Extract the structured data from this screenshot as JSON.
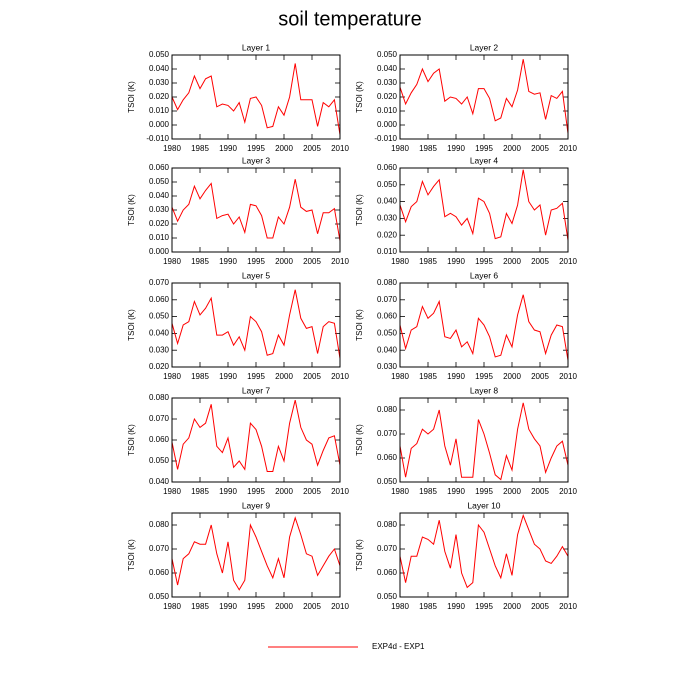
{
  "title": "soil temperature",
  "chart_data": [
    {
      "type": "line",
      "title": "Layer 1",
      "y_label": "TSOI  (K)",
      "x": [
        1980,
        1981,
        1982,
        1983,
        1984,
        1985,
        1986,
        1987,
        1988,
        1989,
        1990,
        1991,
        1992,
        1993,
        1994,
        1995,
        1996,
        1997,
        1998,
        1999,
        2000,
        2001,
        2002,
        2003,
        2004,
        2005,
        2006,
        2007,
        2008,
        2009,
        2010
      ],
      "xlim": [
        1980,
        2010
      ],
      "xticks": [
        1980,
        1985,
        1990,
        1995,
        2000,
        2005,
        2010
      ],
      "ylim": [
        -0.01,
        0.05
      ],
      "yticks": [
        {
          "value": -0.01,
          "label": "-0.010"
        },
        {
          "value": 0,
          "label": "0.000"
        },
        {
          "value": 0.01,
          "label": "0.010"
        },
        {
          "value": 0.02,
          "label": "0.020"
        },
        {
          "value": 0.03,
          "label": "0.030"
        },
        {
          "value": 0.04,
          "label": "0.040"
        },
        {
          "value": 0.05,
          "label": "0.050"
        }
      ],
      "series": [
        {
          "name": "EXP4d - EXP1",
          "color": "#ff0000",
          "values": [
            0.02,
            0.011,
            0.018,
            0.023,
            0.035,
            0.026,
            0.033,
            0.035,
            0.013,
            0.015,
            0.014,
            0.01,
            0.016,
            0.002,
            0.019,
            0.02,
            0.014,
            -0.002,
            -0.001,
            0.013,
            0.007,
            0.02,
            0.044,
            0.018,
            0.018,
            0.018,
            -0.001,
            0.016,
            0.013,
            0.018,
            -0.007
          ]
        }
      ]
    },
    {
      "type": "line",
      "title": "Layer 2",
      "y_label": "TSOI  (K)",
      "x": [
        1980,
        1981,
        1982,
        1983,
        1984,
        1985,
        1986,
        1987,
        1988,
        1989,
        1990,
        1991,
        1992,
        1993,
        1994,
        1995,
        1996,
        1997,
        1998,
        1999,
        2000,
        2001,
        2002,
        2003,
        2004,
        2005,
        2006,
        2007,
        2008,
        2009,
        2010
      ],
      "xlim": [
        1980,
        2010
      ],
      "xticks": [
        1980,
        1985,
        1990,
        1995,
        2000,
        2005,
        2010
      ],
      "ylim": [
        -0.01,
        0.05
      ],
      "yticks": [
        {
          "value": -0.01,
          "label": "-0.010"
        },
        {
          "value": 0,
          "label": "0.000"
        },
        {
          "value": 0.01,
          "label": "0.010"
        },
        {
          "value": 0.02,
          "label": "0.020"
        },
        {
          "value": 0.03,
          "label": "0.030"
        },
        {
          "value": 0.04,
          "label": "0.040"
        },
        {
          "value": 0.05,
          "label": "0.050"
        }
      ],
      "series": [
        {
          "color": "#ff0000",
          "values": [
            0.027,
            0.015,
            0.023,
            0.029,
            0.04,
            0.031,
            0.037,
            0.04,
            0.017,
            0.02,
            0.019,
            0.015,
            0.02,
            0.008,
            0.026,
            0.026,
            0.019,
            0.003,
            0.005,
            0.019,
            0.013,
            0.025,
            0.047,
            0.024,
            0.022,
            0.023,
            0.004,
            0.021,
            0.019,
            0.024,
            -0.006
          ]
        }
      ]
    },
    {
      "type": "line",
      "title": "Layer 3",
      "y_label": "TSOI  (K)",
      "x": [
        1980,
        1981,
        1982,
        1983,
        1984,
        1985,
        1986,
        1987,
        1988,
        1989,
        1990,
        1991,
        1992,
        1993,
        1994,
        1995,
        1996,
        1997,
        1998,
        1999,
        2000,
        2001,
        2002,
        2003,
        2004,
        2005,
        2006,
        2007,
        2008,
        2009,
        2010
      ],
      "xlim": [
        1980,
        2010
      ],
      "xticks": [
        1980,
        1985,
        1990,
        1995,
        2000,
        2005,
        2010
      ],
      "ylim": [
        0,
        0.06
      ],
      "yticks": [
        {
          "value": 0,
          "label": "0.000"
        },
        {
          "value": 0.01,
          "label": "0.010"
        },
        {
          "value": 0.02,
          "label": "0.020"
        },
        {
          "value": 0.03,
          "label": "0.030"
        },
        {
          "value": 0.04,
          "label": "0.040"
        },
        {
          "value": 0.05,
          "label": "0.050"
        },
        {
          "value": 0.06,
          "label": "0.060"
        }
      ],
      "series": [
        {
          "color": "#ff0000",
          "values": [
            0.032,
            0.022,
            0.03,
            0.034,
            0.047,
            0.038,
            0.044,
            0.049,
            0.024,
            0.026,
            0.027,
            0.02,
            0.025,
            0.014,
            0.034,
            0.033,
            0.026,
            0.01,
            0.01,
            0.025,
            0.02,
            0.032,
            0.052,
            0.032,
            0.029,
            0.03,
            0.013,
            0.028,
            0.028,
            0.031,
            0.008
          ]
        }
      ]
    },
    {
      "type": "line",
      "title": "Layer 4",
      "y_label": "TSOI  (K)",
      "x": [
        1980,
        1981,
        1982,
        1983,
        1984,
        1985,
        1986,
        1987,
        1988,
        1989,
        1990,
        1991,
        1992,
        1993,
        1994,
        1995,
        1996,
        1997,
        1998,
        1999,
        2000,
        2001,
        2002,
        2003,
        2004,
        2005,
        2006,
        2007,
        2008,
        2009,
        2010
      ],
      "xlim": [
        1980,
        2010
      ],
      "xticks": [
        1980,
        1985,
        1990,
        1995,
        2000,
        2005,
        2010
      ],
      "ylim": [
        0.01,
        0.06
      ],
      "yticks": [
        {
          "value": 0.01,
          "label": "0.010"
        },
        {
          "value": 0.02,
          "label": "0.020"
        },
        {
          "value": 0.03,
          "label": "0.030"
        },
        {
          "value": 0.04,
          "label": "0.040"
        },
        {
          "value": 0.05,
          "label": "0.050"
        },
        {
          "value": 0.06,
          "label": "0.060"
        }
      ],
      "series": [
        {
          "color": "#ff0000",
          "values": [
            0.038,
            0.028,
            0.037,
            0.04,
            0.052,
            0.044,
            0.049,
            0.053,
            0.031,
            0.033,
            0.031,
            0.026,
            0.03,
            0.021,
            0.042,
            0.04,
            0.033,
            0.018,
            0.019,
            0.033,
            0.027,
            0.038,
            0.059,
            0.04,
            0.035,
            0.038,
            0.02,
            0.035,
            0.036,
            0.039,
            0.017
          ]
        }
      ]
    },
    {
      "type": "line",
      "title": "Layer 5",
      "y_label": "TSOI  (K)",
      "x": [
        1980,
        1981,
        1982,
        1983,
        1984,
        1985,
        1986,
        1987,
        1988,
        1989,
        1990,
        1991,
        1992,
        1993,
        1994,
        1995,
        1996,
        1997,
        1998,
        1999,
        2000,
        2001,
        2002,
        2003,
        2004,
        2005,
        2006,
        2007,
        2008,
        2009,
        2010
      ],
      "xlim": [
        1980,
        2010
      ],
      "xticks": [
        1980,
        1985,
        1990,
        1995,
        2000,
        2005,
        2010
      ],
      "ylim": [
        0.02,
        0.07
      ],
      "yticks": [
        {
          "value": 0.02,
          "label": "0.020"
        },
        {
          "value": 0.03,
          "label": "0.030"
        },
        {
          "value": 0.04,
          "label": "0.040"
        },
        {
          "value": 0.05,
          "label": "0.050"
        },
        {
          "value": 0.06,
          "label": "0.060"
        },
        {
          "value": 0.07,
          "label": "0.070"
        }
      ],
      "series": [
        {
          "color": "#ff0000",
          "values": [
            0.046,
            0.034,
            0.045,
            0.047,
            0.059,
            0.051,
            0.055,
            0.061,
            0.039,
            0.039,
            0.041,
            0.033,
            0.038,
            0.03,
            0.05,
            0.047,
            0.041,
            0.027,
            0.028,
            0.039,
            0.033,
            0.051,
            0.066,
            0.049,
            0.043,
            0.044,
            0.028,
            0.044,
            0.047,
            0.046,
            0.025
          ]
        }
      ]
    },
    {
      "type": "line",
      "title": "Layer 6",
      "y_label": "TSOI  (K)",
      "x": [
        1980,
        1981,
        1982,
        1983,
        1984,
        1985,
        1986,
        1987,
        1988,
        1989,
        1990,
        1991,
        1992,
        1993,
        1994,
        1995,
        1996,
        1997,
        1998,
        1999,
        2000,
        2001,
        2002,
        2003,
        2004,
        2005,
        2006,
        2007,
        2008,
        2009,
        2010
      ],
      "xlim": [
        1980,
        2010
      ],
      "xticks": [
        1980,
        1985,
        1990,
        1995,
        2000,
        2005,
        2010
      ],
      "ylim": [
        0.03,
        0.08
      ],
      "yticks": [
        {
          "value": 0.03,
          "label": "0.030"
        },
        {
          "value": 0.04,
          "label": "0.040"
        },
        {
          "value": 0.05,
          "label": "0.050"
        },
        {
          "value": 0.06,
          "label": "0.060"
        },
        {
          "value": 0.07,
          "label": "0.070"
        },
        {
          "value": 0.08,
          "label": "0.080"
        }
      ],
      "series": [
        {
          "color": "#ff0000",
          "values": [
            0.055,
            0.041,
            0.052,
            0.054,
            0.066,
            0.059,
            0.062,
            0.069,
            0.048,
            0.047,
            0.052,
            0.042,
            0.045,
            0.038,
            0.059,
            0.055,
            0.048,
            0.036,
            0.037,
            0.049,
            0.042,
            0.061,
            0.073,
            0.057,
            0.052,
            0.051,
            0.038,
            0.049,
            0.055,
            0.054,
            0.034
          ]
        }
      ]
    },
    {
      "type": "line",
      "title": "Layer 7",
      "y_label": "TSOI  (K)",
      "x": [
        1980,
        1981,
        1982,
        1983,
        1984,
        1985,
        1986,
        1987,
        1988,
        1989,
        1990,
        1991,
        1992,
        1993,
        1994,
        1995,
        1996,
        1997,
        1998,
        1999,
        2000,
        2001,
        2002,
        2003,
        2004,
        2005,
        2006,
        2007,
        2008,
        2009,
        2010
      ],
      "xlim": [
        1980,
        2010
      ],
      "xticks": [
        1980,
        1985,
        1990,
        1995,
        2000,
        2005,
        2010
      ],
      "ylim": [
        0.04,
        0.08
      ],
      "yticks": [
        {
          "value": 0.04,
          "label": "0.040"
        },
        {
          "value": 0.05,
          "label": "0.050"
        },
        {
          "value": 0.06,
          "label": "0.060"
        },
        {
          "value": 0.07,
          "label": "0.070"
        },
        {
          "value": 0.08,
          "label": "0.080"
        }
      ],
      "series": [
        {
          "color": "#ff0000",
          "values": [
            0.059,
            0.046,
            0.058,
            0.061,
            0.07,
            0.066,
            0.068,
            0.077,
            0.057,
            0.054,
            0.061,
            0.047,
            0.05,
            0.046,
            0.068,
            0.065,
            0.057,
            0.045,
            0.045,
            0.057,
            0.05,
            0.068,
            0.079,
            0.066,
            0.06,
            0.058,
            0.048,
            0.055,
            0.061,
            0.062,
            0.048
          ]
        }
      ]
    },
    {
      "type": "line",
      "title": "Layer 8",
      "y_label": "TSOI  (K)",
      "x": [
        1980,
        1981,
        1982,
        1983,
        1984,
        1985,
        1986,
        1987,
        1988,
        1989,
        1990,
        1991,
        1992,
        1993,
        1994,
        1995,
        1996,
        1997,
        1998,
        1999,
        2000,
        2001,
        2002,
        2003,
        2004,
        2005,
        2006,
        2007,
        2008,
        2009,
        2010
      ],
      "xlim": [
        1980,
        2010
      ],
      "xticks": [
        1980,
        1985,
        1990,
        1995,
        2000,
        2005,
        2010
      ],
      "ylim": [
        0.05,
        0.085
      ],
      "yticks": [
        {
          "value": 0.05,
          "label": "0.050"
        },
        {
          "value": 0.06,
          "label": "0.060"
        },
        {
          "value": 0.07,
          "label": "0.070"
        },
        {
          "value": 0.08,
          "label": "0.080"
        }
      ],
      "series": [
        {
          "color": "#ff0000",
          "values": [
            0.065,
            0.052,
            0.064,
            0.066,
            0.072,
            0.07,
            0.072,
            0.08,
            0.065,
            0.057,
            0.068,
            0.052,
            0.052,
            0.052,
            0.076,
            0.07,
            0.062,
            0.053,
            0.051,
            0.061,
            0.055,
            0.072,
            0.083,
            0.072,
            0.068,
            0.065,
            0.054,
            0.06,
            0.065,
            0.067,
            0.057
          ]
        }
      ]
    },
    {
      "type": "line",
      "title": "Layer 9",
      "y_label": "TSOI  (K)",
      "x": [
        1980,
        1981,
        1982,
        1983,
        1984,
        1985,
        1986,
        1987,
        1988,
        1989,
        1990,
        1991,
        1992,
        1993,
        1994,
        1995,
        1996,
        1997,
        1998,
        1999,
        2000,
        2001,
        2002,
        2003,
        2004,
        2005,
        2006,
        2007,
        2008,
        2009,
        2010
      ],
      "xlim": [
        1980,
        2010
      ],
      "xticks": [
        1980,
        1985,
        1990,
        1995,
        2000,
        2005,
        2010
      ],
      "ylim": [
        0.05,
        0.085
      ],
      "yticks": [
        {
          "value": 0.05,
          "label": "0.050"
        },
        {
          "value": 0.06,
          "label": "0.060"
        },
        {
          "value": 0.07,
          "label": "0.070"
        },
        {
          "value": 0.08,
          "label": "0.080"
        }
      ],
      "series": [
        {
          "color": "#ff0000",
          "values": [
            0.066,
            0.055,
            0.066,
            0.068,
            0.073,
            0.072,
            0.072,
            0.08,
            0.068,
            0.06,
            0.073,
            0.057,
            0.053,
            0.057,
            0.08,
            0.075,
            0.069,
            0.063,
            0.058,
            0.066,
            0.058,
            0.075,
            0.083,
            0.076,
            0.068,
            0.067,
            0.059,
            0.063,
            0.067,
            0.07,
            0.063
          ]
        }
      ]
    },
    {
      "type": "line",
      "title": "Layer 10",
      "y_label": "TSOI  (K)",
      "x": [
        1980,
        1981,
        1982,
        1983,
        1984,
        1985,
        1986,
        1987,
        1988,
        1989,
        1990,
        1991,
        1992,
        1993,
        1994,
        1995,
        1996,
        1997,
        1998,
        1999,
        2000,
        2001,
        2002,
        2003,
        2004,
        2005,
        2006,
        2007,
        2008,
        2009,
        2010
      ],
      "xlim": [
        1980,
        2010
      ],
      "xticks": [
        1980,
        1985,
        1990,
        1995,
        2000,
        2005,
        2010
      ],
      "ylim": [
        0.05,
        0.085
      ],
      "yticks": [
        {
          "value": 0.05,
          "label": "0.050"
        },
        {
          "value": 0.06,
          "label": "0.060"
        },
        {
          "value": 0.07,
          "label": "0.070"
        },
        {
          "value": 0.08,
          "label": "0.080"
        }
      ],
      "series": [
        {
          "color": "#ff0000",
          "values": [
            0.067,
            0.056,
            0.067,
            0.067,
            0.075,
            0.074,
            0.072,
            0.082,
            0.069,
            0.062,
            0.076,
            0.06,
            0.054,
            0.056,
            0.08,
            0.077,
            0.07,
            0.063,
            0.058,
            0.068,
            0.059,
            0.076,
            0.084,
            0.078,
            0.072,
            0.07,
            0.065,
            0.064,
            0.067,
            0.071,
            0.067
          ]
        }
      ]
    }
  ]
}
